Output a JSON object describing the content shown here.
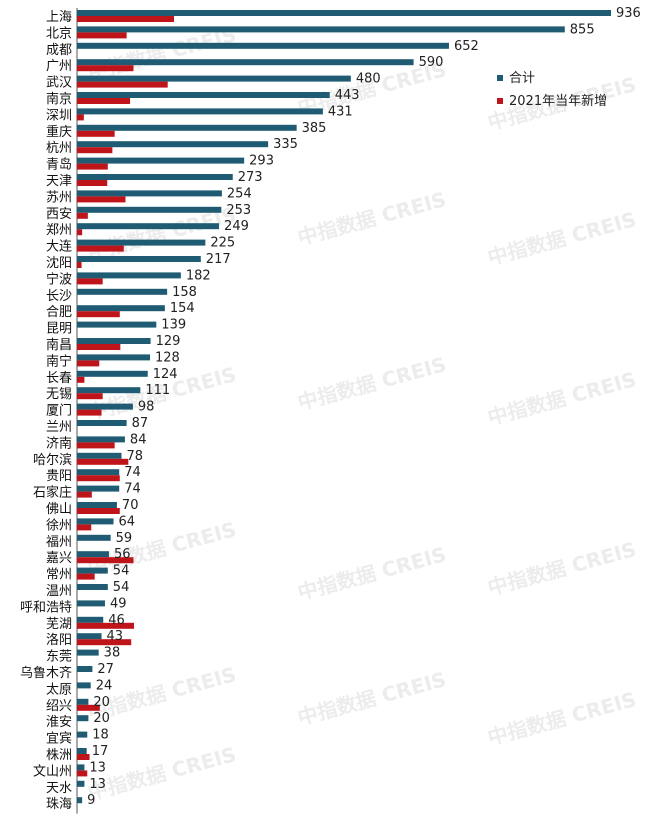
{
  "chart_data": {
    "type": "bar",
    "orientation": "horizontal",
    "categories": [
      "上海",
      "北京",
      "成都",
      "广州",
      "武汉",
      "南京",
      "深圳",
      "重庆",
      "杭州",
      "青岛",
      "天津",
      "苏州",
      "西安",
      "郑州",
      "大连",
      "沈阳",
      "宁波",
      "长沙",
      "合肥",
      "昆明",
      "南昌",
      "南宁",
      "长春",
      "无锡",
      "厦门",
      "兰州",
      "济南",
      "哈尔滨",
      "贵阳",
      "石家庄",
      "佛山",
      "徐州",
      "福州",
      "嘉兴",
      "常州",
      "温州",
      "呼和浩特",
      "芜湖",
      "洛阳",
      "东莞",
      "乌鲁木齐",
      "太原",
      "绍兴",
      "淮安",
      "宜宾",
      "株洲",
      "文山州",
      "天水",
      "珠海"
    ],
    "series": [
      {
        "name": "合计",
        "color": "#1f5c73",
        "values": [
          936,
          855,
          652,
          590,
          480,
          443,
          431,
          385,
          335,
          293,
          273,
          254,
          253,
          249,
          225,
          217,
          182,
          158,
          154,
          139,
          129,
          128,
          124,
          111,
          98,
          87,
          84,
          78,
          74,
          74,
          70,
          64,
          59,
          56,
          54,
          54,
          49,
          46,
          43,
          38,
          27,
          24,
          20,
          20,
          18,
          17,
          13,
          13,
          9
        ]
      },
      {
        "name": "2021年当年新增",
        "color": "#c0141b",
        "values": [
          170,
          87,
          0,
          99,
          159,
          93,
          12,
          66,
          62,
          54,
          53,
          85,
          19,
          9,
          82,
          8,
          45,
          0,
          75,
          0,
          76,
          39,
          13,
          45,
          43,
          0,
          66,
          90,
          75,
          26,
          75,
          25,
          0,
          99,
          31,
          0,
          0,
          100,
          95,
          0,
          0,
          0,
          40,
          0,
          0,
          22,
          18,
          0,
          0
        ]
      }
    ],
    "legend_position": "right",
    "grid": false,
    "watermark": "中指数据 CREIS"
  }
}
